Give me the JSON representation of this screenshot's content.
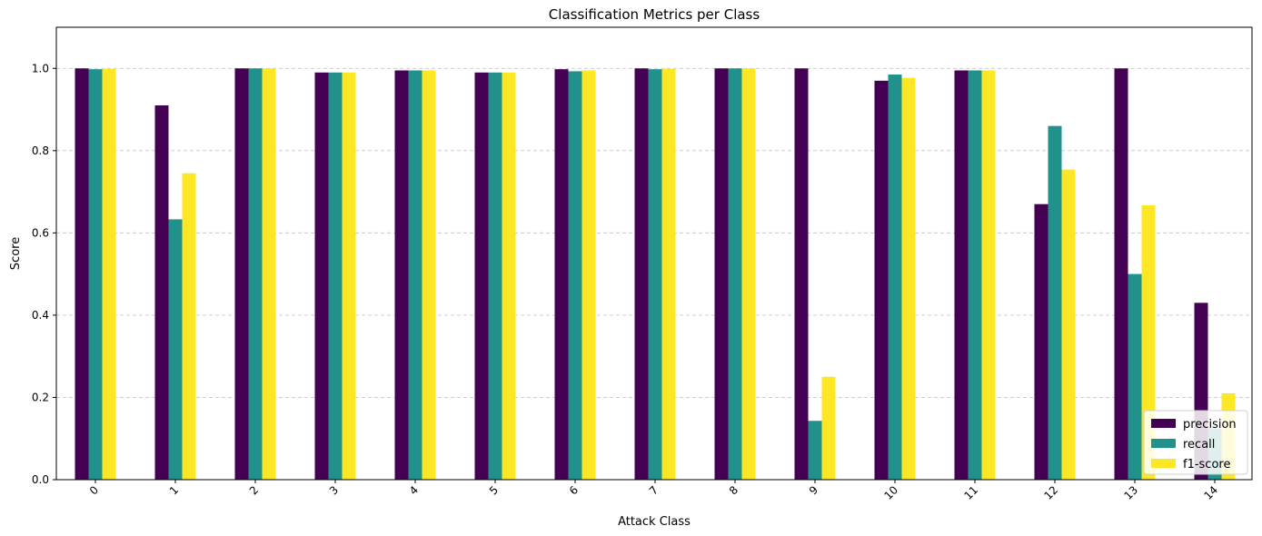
{
  "chart_data": {
    "type": "bar",
    "title": "Classification Metrics per Class",
    "xlabel": "Attack Class",
    "ylabel": "Score",
    "categories": [
      "0",
      "1",
      "2",
      "3",
      "4",
      "5",
      "6",
      "7",
      "8",
      "9",
      "10",
      "11",
      "12",
      "13",
      "14"
    ],
    "yticks": [
      "0.0",
      "0.2",
      "0.4",
      "0.6",
      "0.8",
      "1.0"
    ],
    "ylim": [
      0,
      1.1
    ],
    "grid": "y-dashed",
    "legend_position": "lower-right",
    "series": [
      {
        "name": "precision",
        "color": "#440154",
        "values": [
          1.0,
          0.91,
          1.0,
          0.99,
          0.995,
          0.99,
          0.998,
          1.0,
          1.0,
          1.0,
          0.97,
          0.995,
          0.67,
          1.0,
          0.43
        ]
      },
      {
        "name": "recall",
        "color": "#21918c",
        "values": [
          0.998,
          0.633,
          1.0,
          0.99,
          0.995,
          0.99,
          0.993,
          0.998,
          1.0,
          0.143,
          0.985,
          0.995,
          0.86,
          0.5,
          0.125
        ]
      },
      {
        "name": "f1-score",
        "color": "#fde725",
        "values": [
          0.999,
          0.745,
          1.0,
          0.99,
          0.995,
          0.99,
          0.995,
          0.999,
          1.0,
          0.25,
          0.977,
          0.995,
          0.754,
          0.667,
          0.21
        ]
      }
    ]
  }
}
